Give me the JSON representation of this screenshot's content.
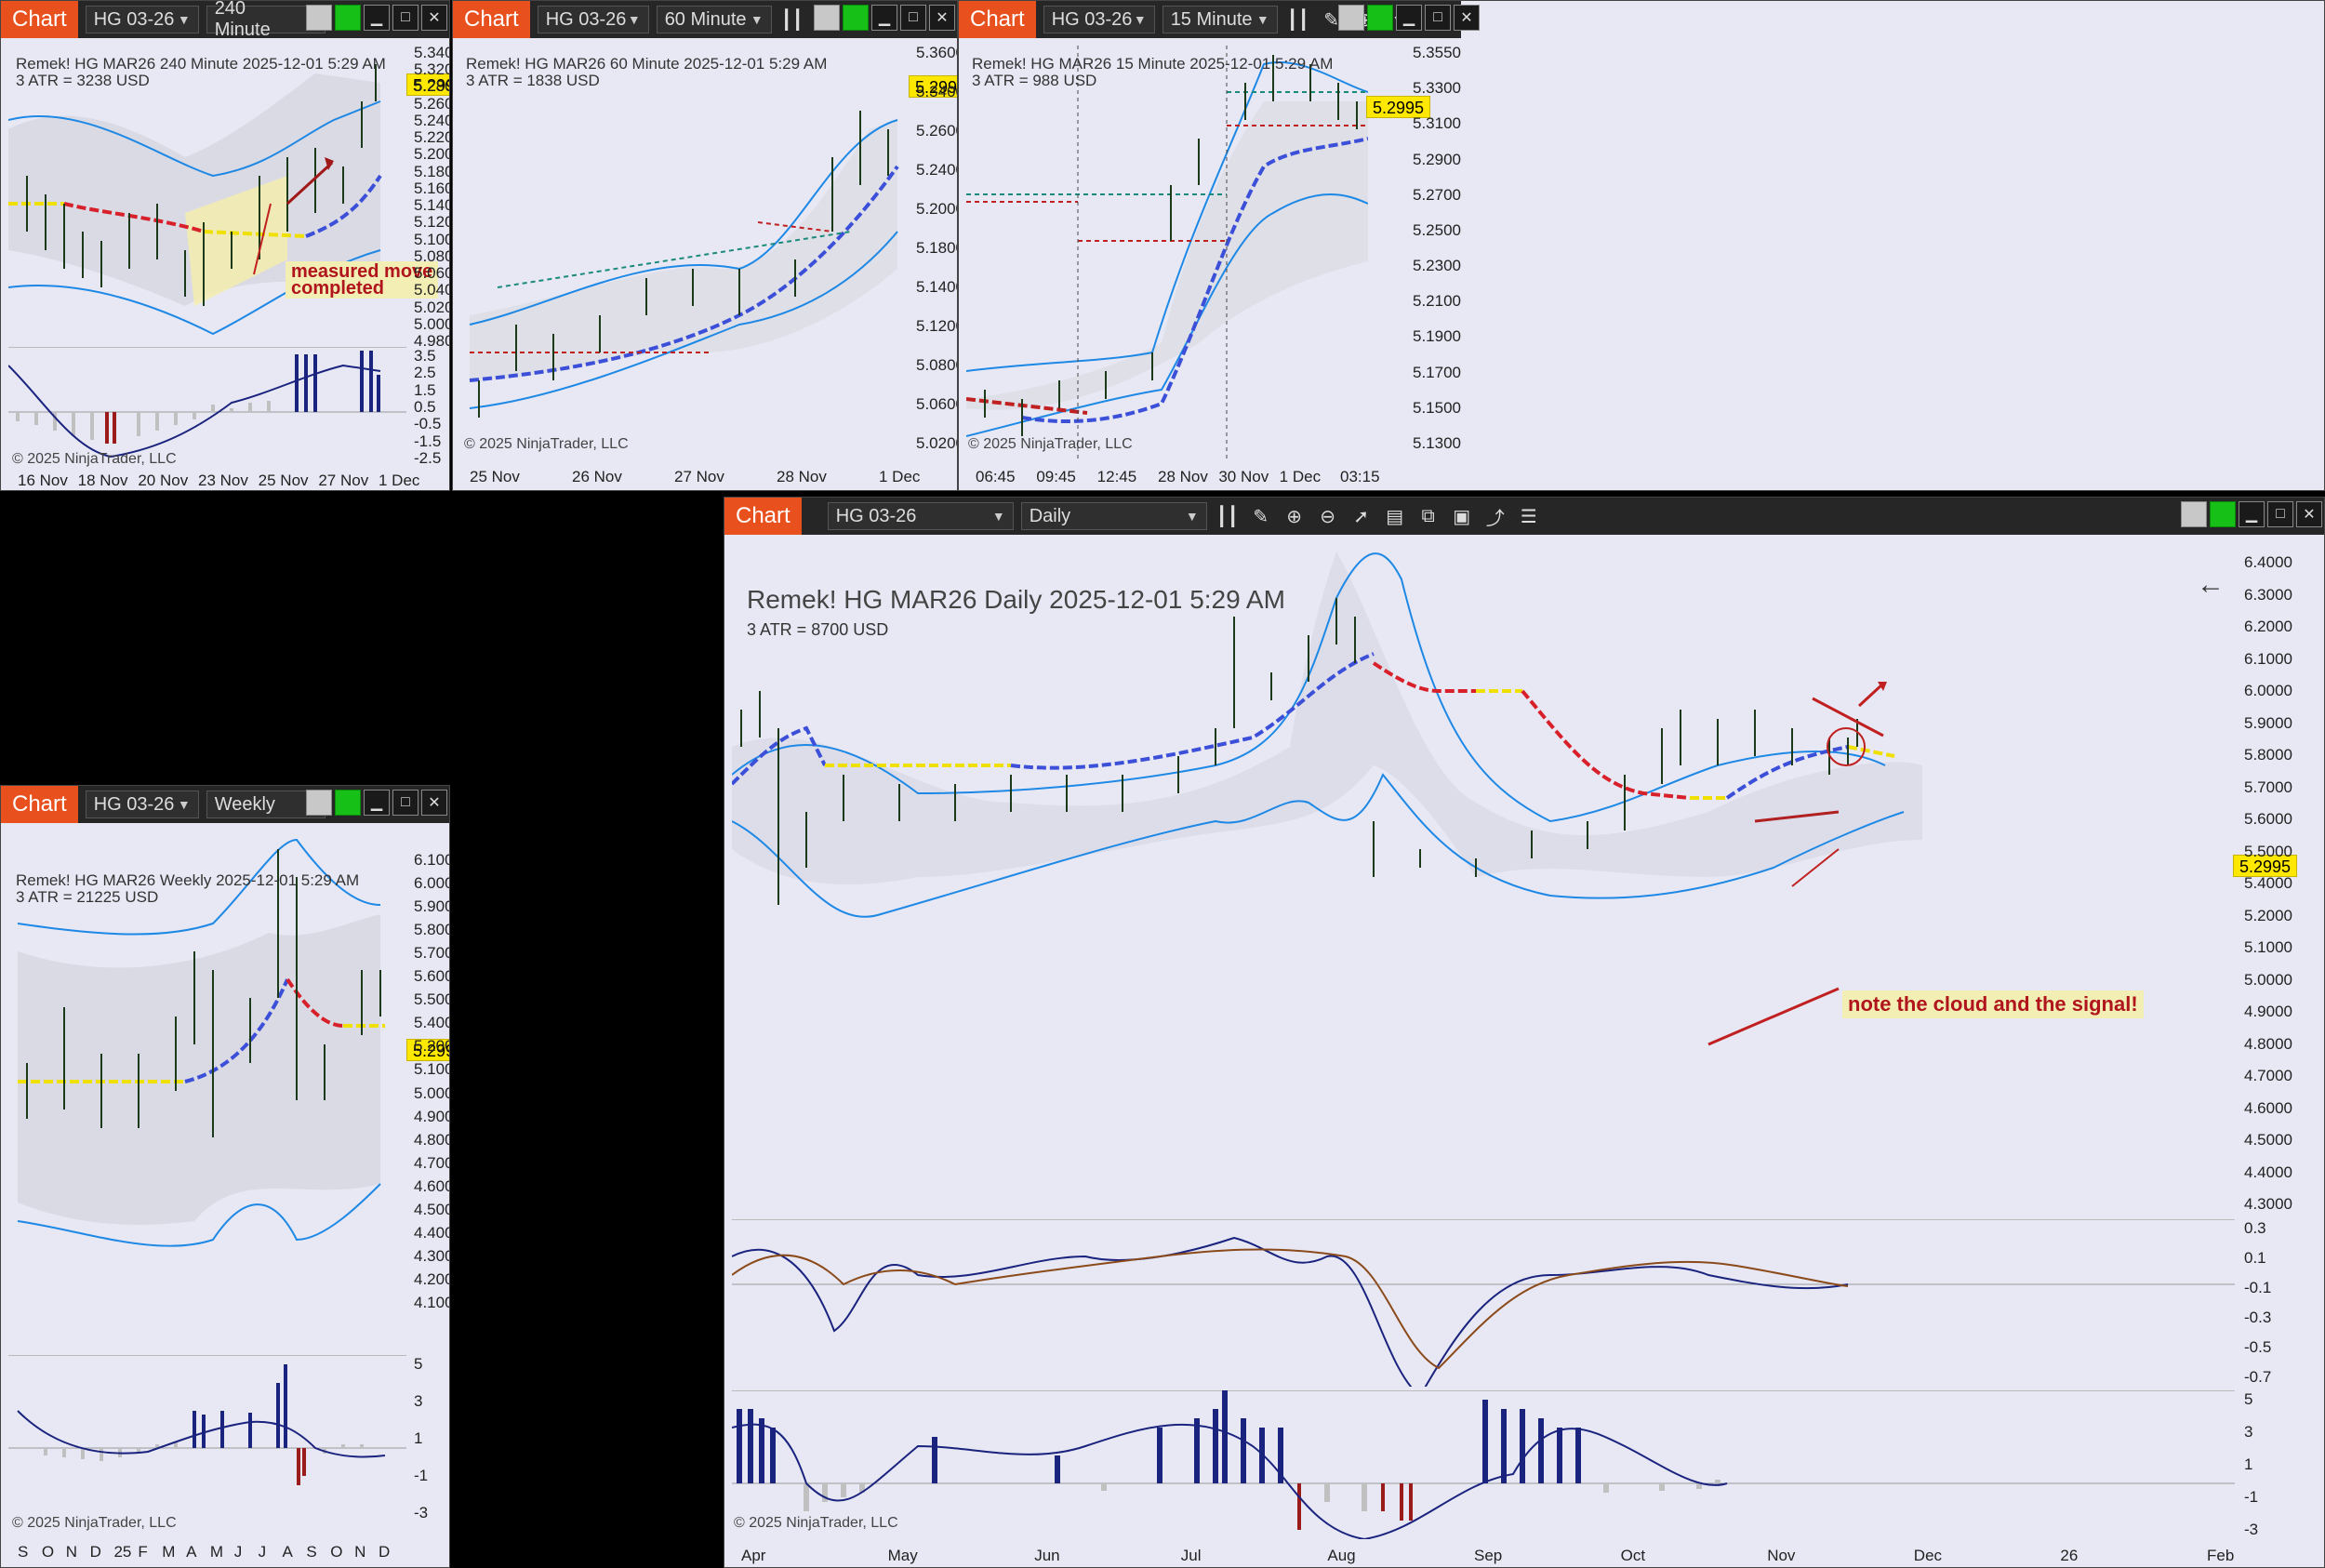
{
  "windows": {
    "w240": {
      "tab": "Chart",
      "instrument": "HG 03-26",
      "interval": "240 Minute",
      "title": "Remek!  HG MAR26  240 Minute  2025-12-01 5:29 AM",
      "atr": "3 ATR = 3238 USD",
      "price": "5.2995",
      "note": "measured move\ncompleted",
      "copyright": "© 2025 NinjaTrader, LLC",
      "yticks": [
        "5.3400",
        "5.3200",
        "5.2800",
        "5.2600",
        "5.2400",
        "5.2200",
        "5.2000",
        "5.1800",
        "5.1600",
        "5.1400",
        "5.1200",
        "5.1000",
        "5.0800",
        "5.0600",
        "5.0400",
        "5.0200",
        "5.0000",
        "4.9800"
      ],
      "osc_ticks": [
        "3.5",
        "2.5",
        "1.5",
        "0.5",
        "-0.5",
        "-1.5",
        "-2.5"
      ],
      "xticks": [
        "16 Nov",
        "18 Nov",
        "20 Nov",
        "23 Nov",
        "25 Nov",
        "27 Nov",
        "1 Dec"
      ]
    },
    "w60": {
      "tab": "Chart",
      "instrument": "HG 03-26",
      "interval": "60 Minute",
      "title": "Remek!  HG MAR26  60 Minute  2025-12-01 5:29 AM",
      "atr": "3 ATR = 1838 USD",
      "price": "5.2995",
      "copyright": "© 2025 NinjaTrader, LLC",
      "yticks": [
        "5.3600",
        "5.3400",
        "5.2600",
        "5.2400",
        "5.2000",
        "5.1800",
        "5.1400",
        "5.1200",
        "5.0800",
        "5.0600",
        "5.0200"
      ],
      "xticks": [
        "25 Nov",
        "26 Nov",
        "27 Nov",
        "28 Nov",
        "1 Dec"
      ]
    },
    "w15": {
      "tab": "Chart",
      "instrument": "HG 03-26",
      "interval": "15 Minute",
      "title": "Remek!  HG MAR26  15 Minute  2025-12-01 5:29 AM",
      "atr": "3 ATR = 988 USD",
      "price": "5.2995",
      "copyright": "© 2025 NinjaTrader, LLC",
      "yticks": [
        "5.3550",
        "5.3300",
        "5.3100",
        "5.2900",
        "5.2700",
        "5.2500",
        "5.2300",
        "5.2100",
        "5.1900",
        "5.1700",
        "5.1500",
        "5.1300"
      ],
      "xticks": [
        "06:45",
        "09:45",
        "12:45",
        "28 Nov",
        "30 Nov",
        "1 Dec",
        "03:15"
      ]
    },
    "wW": {
      "tab": "Chart",
      "instrument": "HG 03-26",
      "interval": "Weekly",
      "title": "Remek!  HG MAR26  Weekly  2025-12-01 5:29 AM",
      "atr": "3 ATR = 21225 USD",
      "price": "5.2995",
      "copyright": "© 2025 NinjaTrader, LLC",
      "yticks": [
        "6.1000",
        "6.0000",
        "5.9000",
        "5.8000",
        "5.7000",
        "5.6000",
        "5.5000",
        "5.4000",
        "5.2000",
        "5.1000",
        "5.0000",
        "4.9000",
        "4.8000",
        "4.7000",
        "4.6000",
        "4.5000",
        "4.4000",
        "4.3000",
        "4.2000",
        "4.1000"
      ],
      "osc_ticks": [
        "5",
        "3",
        "1",
        "-1",
        "-3"
      ],
      "xticks": [
        "S",
        "O",
        "N",
        "D",
        "25",
        "F",
        "M",
        "A",
        "M",
        "J",
        "J",
        "A",
        "S",
        "O",
        "N",
        "D"
      ]
    },
    "wD": {
      "tab": "Chart",
      "instrument": "HG 03-26",
      "interval": "Daily",
      "title": "Remek!  HG MAR26  Daily  2025-12-01 5:29 AM",
      "atr": "3 ATR = 8700 USD",
      "price": "5.2995",
      "note": "note the cloud and the signal!",
      "copyright": "© 2025 NinjaTrader, LLC",
      "yticks": [
        "6.4000",
        "6.3000",
        "6.2000",
        "6.1000",
        "6.0000",
        "5.9000",
        "5.8000",
        "5.7000",
        "5.6000",
        "5.5000",
        "5.4000",
        "5.2000",
        "5.1000",
        "5.0000",
        "4.9000",
        "4.8000",
        "4.7000",
        "4.6000",
        "4.5000",
        "4.4000",
        "4.3000"
      ],
      "macd_ticks": [
        "0.3",
        "0.1",
        "-0.1",
        "-0.3",
        "-0.5",
        "-0.7"
      ],
      "osc_ticks": [
        "5",
        "3",
        "1",
        "-1",
        "-3"
      ],
      "xticks": [
        "Apr",
        "May",
        "Jun",
        "Jul",
        "Aug",
        "Sep",
        "Oct",
        "Nov",
        "Dec",
        "26",
        "Feb"
      ]
    }
  },
  "colors": {
    "accent": "#e8501e",
    "price_flag": "#ffe800",
    "band": "#1e88e5",
    "ma_up": "#3b4fd8",
    "ma_down": "#d8202a",
    "hist_up": "#1a237e",
    "hist_down": "#9b1b1b",
    "hist_neutral": "#c0c0c0",
    "on": "#16c016"
  },
  "icons": [
    "bar-chart-icon",
    "pencil-icon",
    "zoom-in-icon",
    "zoom-out-icon",
    "pointer-icon",
    "data-box-icon",
    "panels-icon",
    "template-icon",
    "strategy-icon",
    "list-icon",
    "minimize-icon",
    "maximize-icon",
    "close-icon",
    "back-arrow-icon"
  ]
}
